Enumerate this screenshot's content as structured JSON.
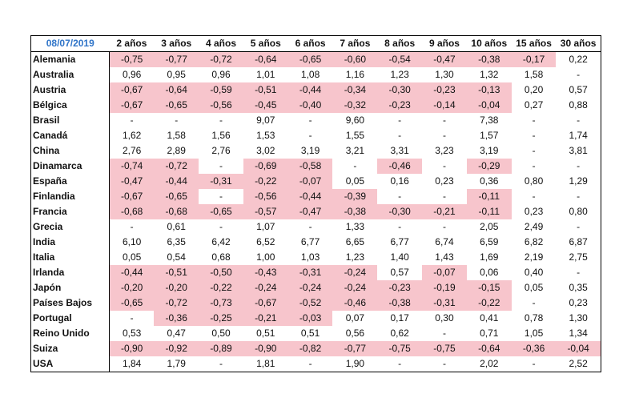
{
  "header": {
    "date": "08/07/2019",
    "columns": [
      "2 años",
      "3 años",
      "4 años",
      "5 años",
      "6 años",
      "7 años",
      "8 años",
      "9 años",
      "10 años",
      "15 años",
      "30 años"
    ]
  },
  "rows": [
    {
      "country": "Alemania",
      "values": [
        "-0,75",
        "-0,77",
        "-0,72",
        "-0,64",
        "-0,65",
        "-0,60",
        "-0,54",
        "-0,47",
        "-0,38",
        "-0,17",
        "0,22"
      ]
    },
    {
      "country": "Australia",
      "values": [
        "0,96",
        "0,95",
        "0,96",
        "1,01",
        "1,08",
        "1,16",
        "1,23",
        "1,30",
        "1,32",
        "1,58",
        "-"
      ]
    },
    {
      "country": "Austria",
      "values": [
        "-0,67",
        "-0,64",
        "-0,59",
        "-0,51",
        "-0,44",
        "-0,34",
        "-0,30",
        "-0,23",
        "-0,13",
        "0,20",
        "0,57"
      ]
    },
    {
      "country": "Bélgica",
      "values": [
        "-0,67",
        "-0,65",
        "-0,56",
        "-0,45",
        "-0,40",
        "-0,32",
        "-0,23",
        "-0,14",
        "-0,04",
        "0,27",
        "0,88"
      ]
    },
    {
      "country": "Brasil",
      "values": [
        "-",
        "-",
        "-",
        "9,07",
        "-",
        "9,60",
        "-",
        "-",
        "7,38",
        "-",
        "-"
      ]
    },
    {
      "country": "Canadá",
      "values": [
        "1,62",
        "1,58",
        "1,56",
        "1,53",
        "-",
        "1,55",
        "-",
        "-",
        "1,57",
        "-",
        "1,74"
      ]
    },
    {
      "country": "China",
      "values": [
        "2,76",
        "2,89",
        "2,76",
        "3,02",
        "3,19",
        "3,21",
        "3,31",
        "3,23",
        "3,19",
        "-",
        "3,81"
      ]
    },
    {
      "country": "Dinamarca",
      "values": [
        "-0,74",
        "-0,72",
        "-",
        "-0,69",
        "-0,58",
        "-",
        "-0,46",
        "-",
        "-0,29",
        "-",
        "-"
      ]
    },
    {
      "country": "España",
      "values": [
        "-0,47",
        "-0,44",
        "-0,31",
        "-0,22",
        "-0,07",
        "0,05",
        "0,16",
        "0,23",
        "0,36",
        "0,80",
        "1,29"
      ]
    },
    {
      "country": "Finlandia",
      "values": [
        "-0,67",
        "-0,65",
        "-",
        "-0,56",
        "-0,44",
        "-0,39",
        "-",
        "-",
        "-0,11",
        "-",
        "-"
      ]
    },
    {
      "country": "Francia",
      "values": [
        "-0,68",
        "-0,68",
        "-0,65",
        "-0,57",
        "-0,47",
        "-0,38",
        "-0,30",
        "-0,21",
        "-0,11",
        "0,23",
        "0,80"
      ]
    },
    {
      "country": "Grecia",
      "values": [
        "-",
        "0,61",
        "-",
        "1,07",
        "-",
        "1,33",
        "-",
        "-",
        "2,05",
        "2,49",
        "-"
      ]
    },
    {
      "country": "India",
      "values": [
        "6,10",
        "6,35",
        "6,42",
        "6,52",
        "6,77",
        "6,65",
        "6,77",
        "6,74",
        "6,59",
        "6,82",
        "6,87"
      ]
    },
    {
      "country": "Italia",
      "values": [
        "0,05",
        "0,54",
        "0,68",
        "1,00",
        "1,03",
        "1,23",
        "1,40",
        "1,43",
        "1,69",
        "2,19",
        "2,75"
      ]
    },
    {
      "country": "Irlanda",
      "values": [
        "-0,44",
        "-0,51",
        "-0,50",
        "-0,43",
        "-0,31",
        "-0,24",
        "0,57",
        "-0,07",
        "0,06",
        "0,40",
        "-"
      ]
    },
    {
      "country": "Japón",
      "values": [
        "-0,20",
        "-0,20",
        "-0,22",
        "-0,24",
        "-0,24",
        "-0,24",
        "-0,23",
        "-0,19",
        "-0,15",
        "0,05",
        "0,35"
      ]
    },
    {
      "country": "Países Bajos",
      "values": [
        "-0,65",
        "-0,72",
        "-0,73",
        "-0,67",
        "-0,52",
        "-0,46",
        "-0,38",
        "-0,31",
        "-0,22",
        "-",
        "0,23"
      ]
    },
    {
      "country": "Portugal",
      "values": [
        "-",
        "-0,36",
        "-0,25",
        "-0,21",
        "-0,03",
        "0,07",
        "0,17",
        "0,30",
        "0,41",
        "0,78",
        "1,30"
      ]
    },
    {
      "country": "Reino Unido",
      "values": [
        "0,53",
        "0,47",
        "0,50",
        "0,51",
        "0,51",
        "0,56",
        "0,62",
        "-",
        "0,71",
        "1,05",
        "1,34"
      ]
    },
    {
      "country": "Suiza",
      "values": [
        "-0,90",
        "-0,92",
        "-0,89",
        "-0,90",
        "-0,82",
        "-0,77",
        "-0,75",
        "-0,75",
        "-0,64",
        "-0,36",
        "-0,04"
      ]
    },
    {
      "country": "USA",
      "values": [
        "1,84",
        "1,79",
        "-",
        "1,81",
        "-",
        "1,90",
        "-",
        "-",
        "2,02",
        "-",
        "2,52"
      ]
    }
  ],
  "colors": {
    "negative_highlight": "#f7c5cc",
    "date_text": "#2f74c8"
  }
}
